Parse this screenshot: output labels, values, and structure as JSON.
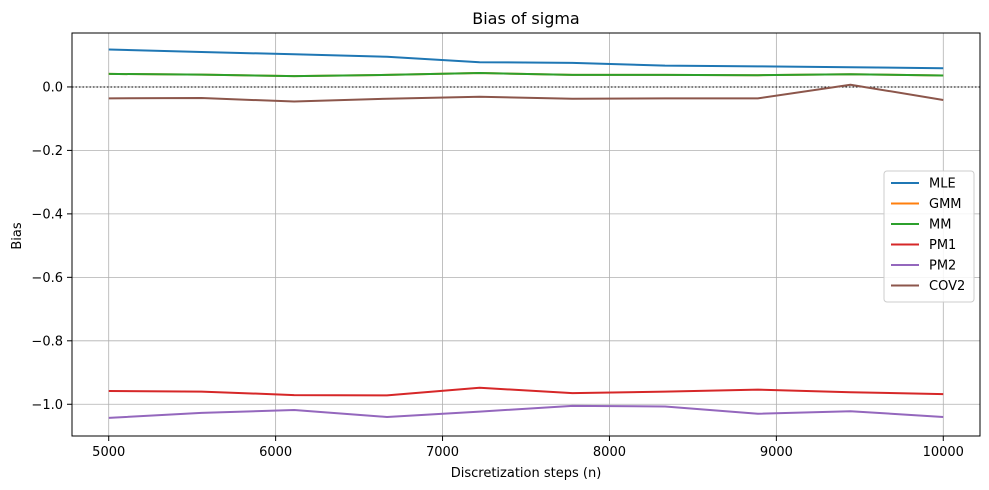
{
  "chart_data": {
    "type": "line",
    "title": "Bias of sigma",
    "xlabel": "Discretization steps (n)",
    "ylabel": "Bias",
    "xlim": [
      4780,
      10220
    ],
    "ylim": [
      -1.1,
      0.17
    ],
    "xticks": [
      5000,
      6000,
      7000,
      8000,
      9000,
      10000
    ],
    "yticks": [
      0.0,
      -0.2,
      -0.4,
      -0.6,
      -0.8,
      -1.0
    ],
    "ytick_labels": [
      "0.0",
      "−0.2",
      "−0.4",
      "−0.6",
      "−0.8",
      "−1.0"
    ],
    "xtick_labels": [
      "5000",
      "6000",
      "7000",
      "8000",
      "9000",
      "10000"
    ],
    "grid": true,
    "reference_line": {
      "y": 0.0,
      "style": "dotted",
      "color": "#000000"
    },
    "legend_position": "center-right",
    "x": [
      5000,
      5556,
      6111,
      6667,
      7222,
      7778,
      8333,
      8889,
      9444,
      10000
    ],
    "series": [
      {
        "name": "MLE",
        "color": "#1f77b4",
        "values": [
          0.118,
          0.11,
          0.103,
          0.095,
          0.078,
          0.076,
          0.067,
          0.065,
          0.062,
          0.059
        ]
      },
      {
        "name": "GMM",
        "color": "#ff7f0e",
        "values": [
          0.041,
          0.039,
          0.034,
          0.038,
          0.044,
          0.038,
          0.038,
          0.037,
          0.04,
          0.036
        ]
      },
      {
        "name": "MM",
        "color": "#2ca02c",
        "values": [
          0.041,
          0.039,
          0.034,
          0.038,
          0.044,
          0.038,
          0.038,
          0.037,
          0.04,
          0.036
        ]
      },
      {
        "name": "PM1",
        "color": "#d62728",
        "values": [
          -0.958,
          -0.96,
          -0.971,
          -0.972,
          -0.948,
          -0.965,
          -0.96,
          -0.954,
          -0.962,
          -0.968
        ]
      },
      {
        "name": "PM2",
        "color": "#9467bd",
        "values": [
          -1.043,
          -1.027,
          -1.018,
          -1.04,
          -1.023,
          -1.005,
          -1.007,
          -1.03,
          -1.022,
          -1.04
        ]
      },
      {
        "name": "COV2",
        "color": "#8c564b",
        "values": [
          -0.036,
          -0.035,
          -0.046,
          -0.037,
          -0.031,
          -0.037,
          -0.036,
          -0.036,
          0.007,
          -0.041
        ]
      }
    ]
  }
}
